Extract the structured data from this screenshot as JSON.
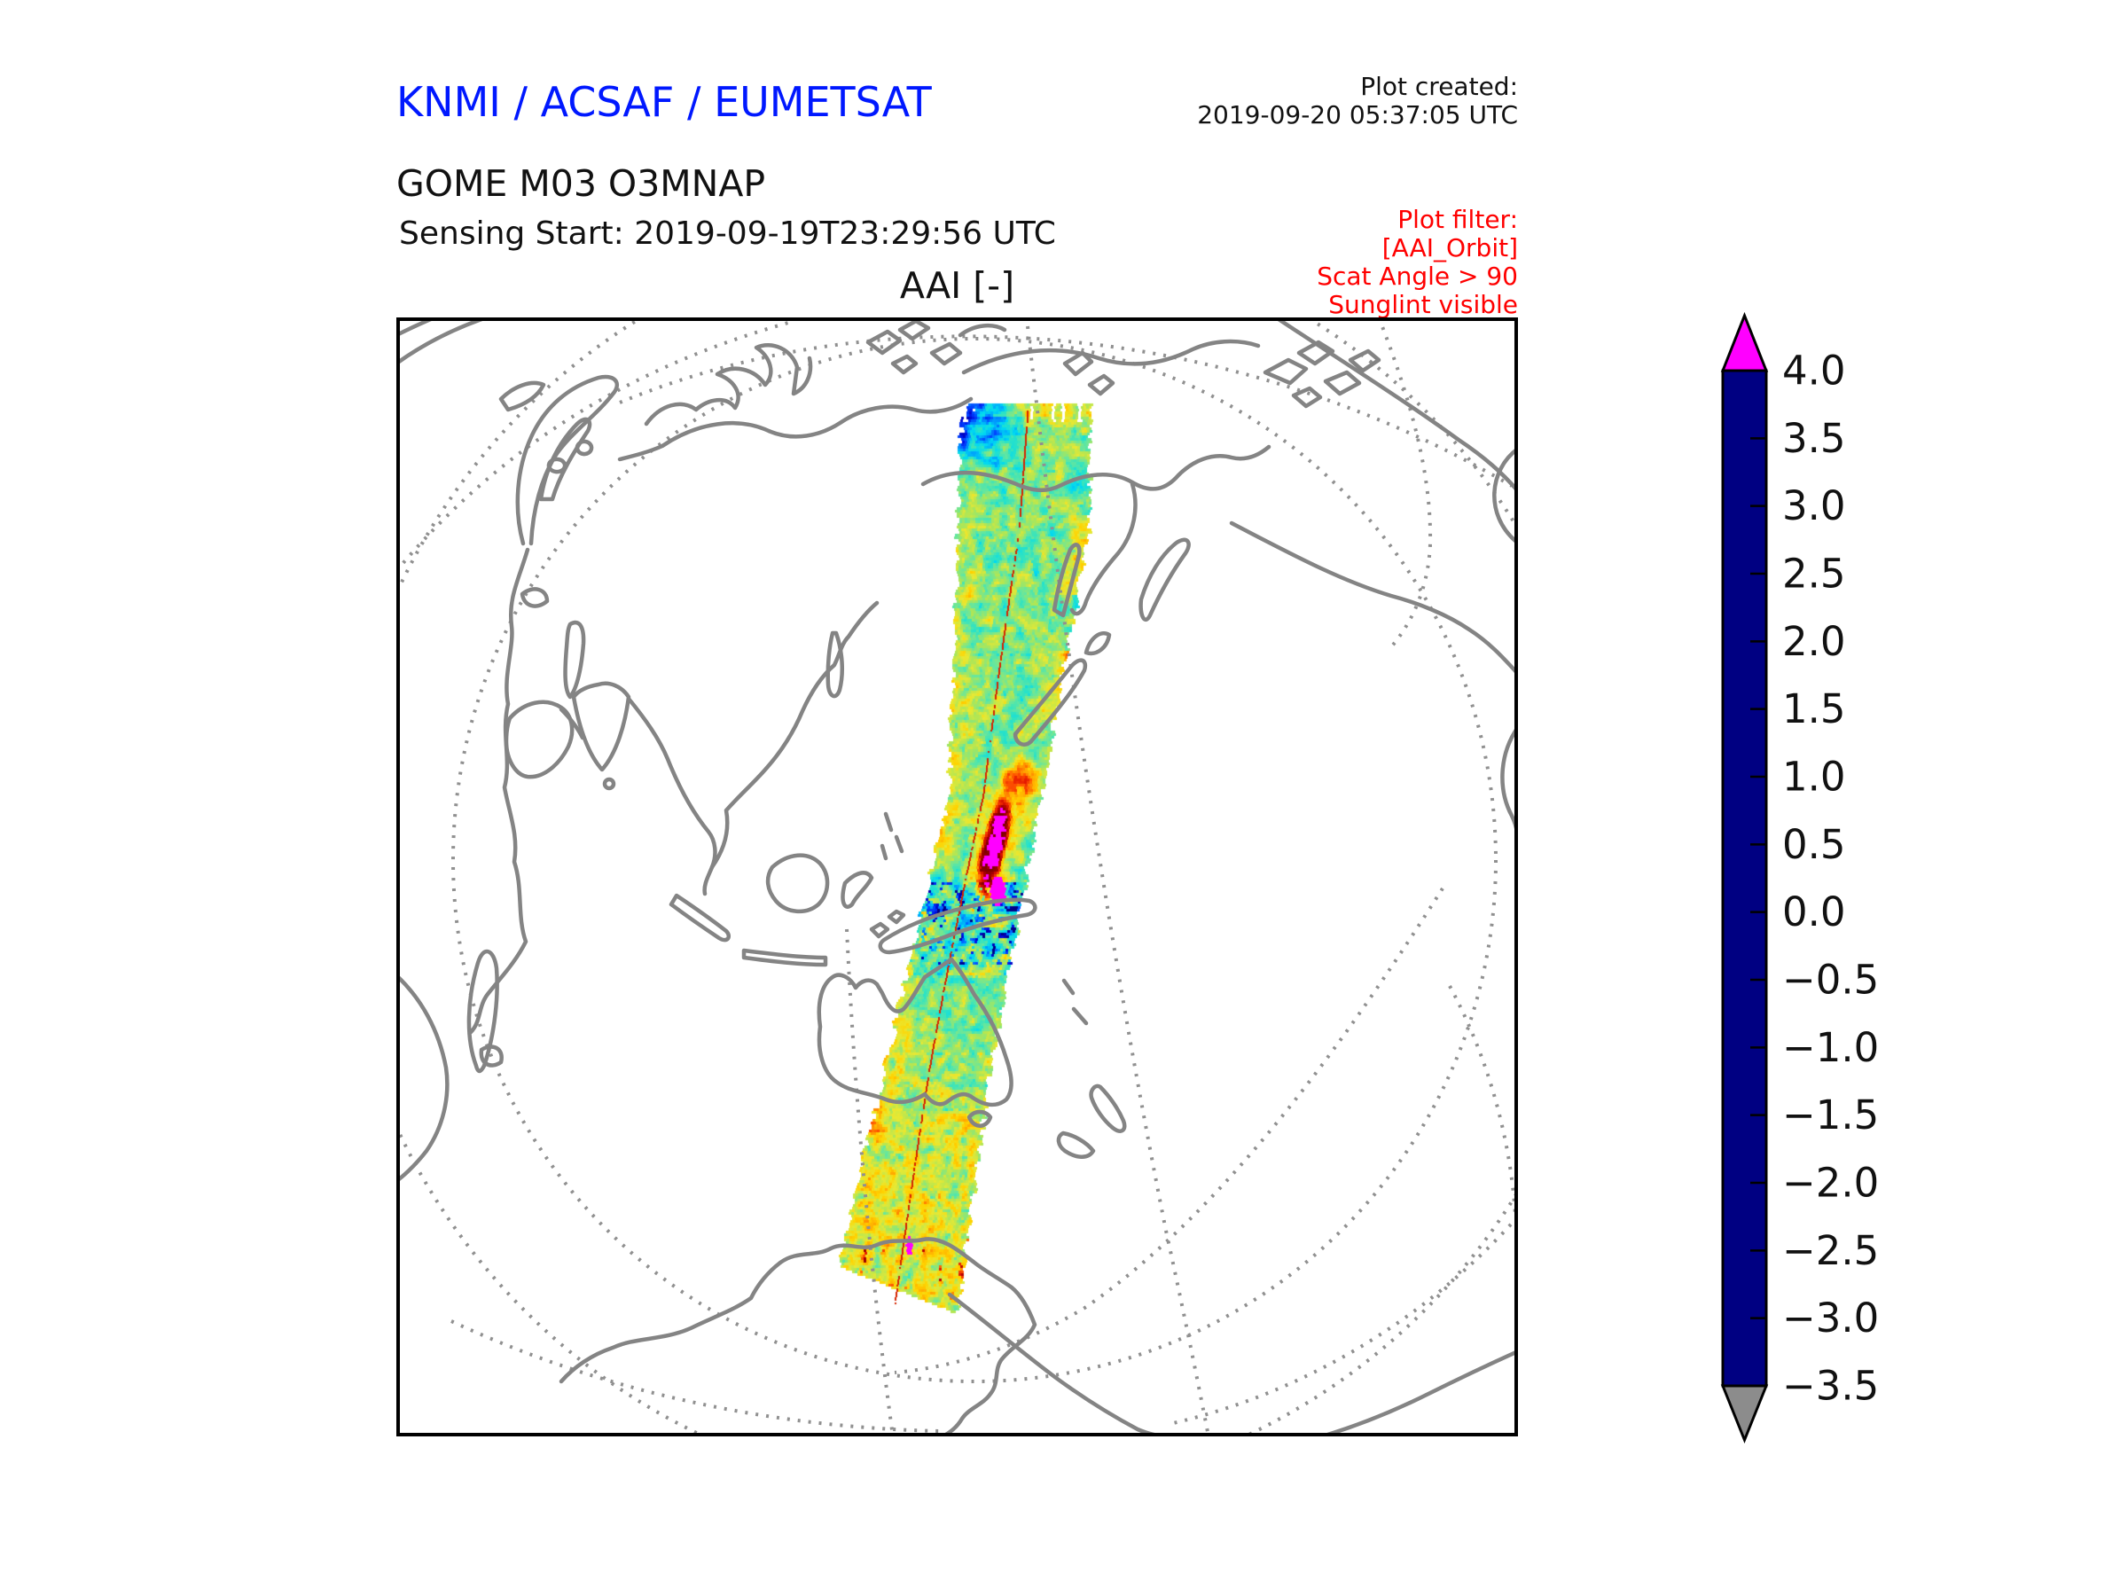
{
  "header": {
    "organization": "KNMI / ACSAF / EUMETSAT",
    "organization_color": "#0018ff",
    "product": "GOME M03 O3MNAP",
    "sensing_start": "Sensing Start: 2019-09-19T23:29:56 UTC",
    "plot_created_label": "Plot created:",
    "plot_created_time": "2019-09-20 05:37:05 UTC"
  },
  "plot_filter": {
    "color": "#ff0000",
    "lines": [
      "Plot filter:",
      "[AAI_Orbit]",
      "Scat Angle > 90",
      "Sunglint visible"
    ]
  },
  "map": {
    "title": "AAI [-]",
    "frame_color": "#000000",
    "coastline_color": "#848484",
    "graticule_color": "#909090",
    "background": "#ffffff"
  },
  "chart_data": {
    "type": "heatmap",
    "title": "AAI [-]",
    "subtitle": "GOME-2 on Metop-A (M03) O3MNAP absorbing aerosol index, single orbit swath on a perspective world map",
    "legend_position": "right",
    "colorbar": {
      "range": [
        -3.5,
        4.0
      ],
      "tick_step": 0.5,
      "ticks": [
        "4.0",
        "3.5",
        "3.0",
        "2.5",
        "2.0",
        "1.5",
        "1.0",
        "0.5",
        "0.0",
        "−0.5",
        "−1.0",
        "−1.5",
        "−2.0",
        "−2.5",
        "−3.0",
        "−3.5"
      ],
      "over_color": "#ff00ff",
      "under_color": "#8c8c8c",
      "stops": [
        {
          "value": -3.5,
          "color": "#000082"
        },
        {
          "value": -3.0,
          "color": "#0000b4"
        },
        {
          "value": -2.5,
          "color": "#0011e6"
        },
        {
          "value": -2.0,
          "color": "#0049ff"
        },
        {
          "value": -1.5,
          "color": "#0094ff"
        },
        {
          "value": -1.0,
          "color": "#00d9f2"
        },
        {
          "value": -0.5,
          "color": "#2ee3c3"
        },
        {
          "value": 0.0,
          "color": "#66e69e"
        },
        {
          "value": 0.5,
          "color": "#b0e655"
        },
        {
          "value": 1.0,
          "color": "#e8e833"
        },
        {
          "value": 1.5,
          "color": "#ffd300"
        },
        {
          "value": 2.0,
          "color": "#ffa200"
        },
        {
          "value": 2.5,
          "color": "#ff5500"
        },
        {
          "value": 3.0,
          "color": "#e61a00"
        },
        {
          "value": 3.5,
          "color": "#b30000"
        },
        {
          "value": 4.0,
          "color": "#7f0000"
        }
      ]
    },
    "swath": {
      "sensing_start": "2019-09-19T23:29:56 UTC",
      "extent": "Descending orbit swath from the Arctic over east Asia and Australia to Antarctica",
      "typical_value_range": [
        -1.0,
        1.5
      ],
      "features": [
        {
          "label": "Deep blue AAI minimum at the northern (Arctic) swath edge",
          "approx_value": -2.5
        },
        {
          "label": "Strong absorbing aerosol plume north of New Guinea with saturated magenta core",
          "approx_value": 4.0
        },
        {
          "label": "Blue speckled low-AAI region around Indonesia / New Guinea coastlines",
          "approx_value": -2.0
        },
        {
          "label": "Elevated yellow-orange AAI band over the Southern Ocean and Antarctic coast",
          "approx_value": 1.5
        },
        {
          "label": "Thin red nadir line running along the centre of the swath",
          "approx_value": 3.0
        }
      ]
    }
  }
}
